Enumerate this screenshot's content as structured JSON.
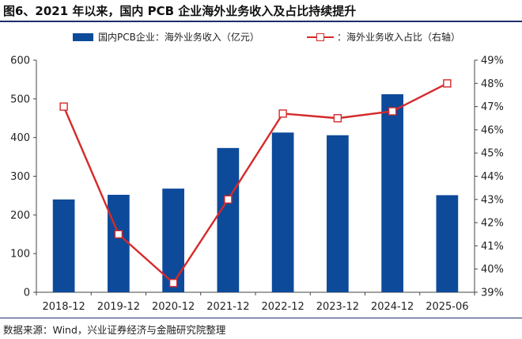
{
  "title": "图6、2021 年以来，国内 PCB 企业海外业务收入及占比持续提升",
  "source": "数据来源：Wind，兴业证券经济与金融研究院整理",
  "legend": {
    "bar_label": "国内PCB企业：海外业务收入（亿元）",
    "line_label": "：海外业务收入占比（右轴）"
  },
  "colors": {
    "bar": "#0d4a9a",
    "line": "#d62a2a",
    "accent": "#1f2f6b"
  },
  "chart_data": {
    "type": "bar",
    "categories": [
      "2018-12",
      "2019-12",
      "2020-12",
      "2021-12",
      "2022-12",
      "2023-12",
      "2024-12",
      "2025-06"
    ],
    "series": [
      {
        "name": "国内PCB企业：海外业务收入（亿元）",
        "type": "bar",
        "axis": "left",
        "values": [
          240,
          252,
          268,
          373,
          413,
          406,
          512,
          251
        ]
      },
      {
        "name": "：海外业务收入占比（右轴）",
        "type": "line",
        "axis": "right",
        "values": [
          47.0,
          41.5,
          39.4,
          43.0,
          46.7,
          46.5,
          46.8,
          48.0
        ]
      }
    ],
    "ylim_left": [
      0,
      600
    ],
    "yticks_left": [
      "0",
      "100",
      "200",
      "300",
      "400",
      "500",
      "600"
    ],
    "ylim_right": [
      39,
      49
    ],
    "yticks_right": [
      "39%",
      "40%",
      "41%",
      "42%",
      "43%",
      "44%",
      "45%",
      "46%",
      "47%",
      "48%",
      "49%"
    ],
    "grid": false,
    "legend_position": "top"
  }
}
